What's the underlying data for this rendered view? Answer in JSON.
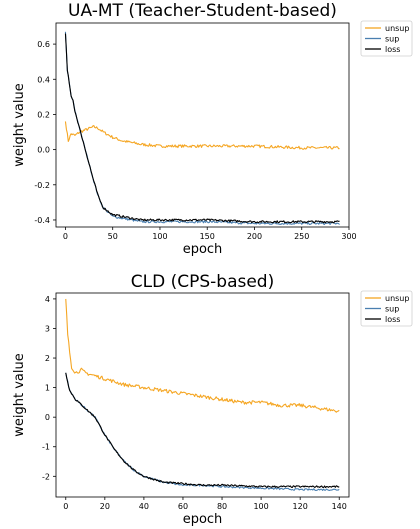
{
  "chart_data": [
    {
      "type": "line",
      "title": "UA-MT (Teacher-Student-based)",
      "xlabel": "epoch",
      "ylabel": "weight value",
      "xlim": [
        -10,
        300
      ],
      "ylim": [
        -0.44,
        0.72
      ],
      "xticks": [
        0,
        50,
        100,
        150,
        200,
        250,
        300
      ],
      "xtick_labels": [
        "0",
        "50",
        "100",
        "150",
        "200",
        "250",
        "300"
      ],
      "yticks": [
        0.6,
        0.4,
        0.2,
        0.0,
        -0.2,
        -0.4
      ],
      "ytick_labels": [
        "0.6",
        "0.4",
        "0.2",
        "0.0",
        "-0.2",
        "-0.4"
      ],
      "legend_position": "outside-right",
      "series": [
        {
          "name": "unsup",
          "color": "#f5a623",
          "x": [
            0,
            3,
            6,
            10,
            15,
            20,
            25,
            30,
            35,
            40,
            50,
            60,
            70,
            80,
            100,
            120,
            150,
            200,
            250,
            290
          ],
          "y": [
            0.16,
            0.05,
            0.09,
            0.08,
            0.1,
            0.11,
            0.12,
            0.13,
            0.12,
            0.1,
            0.07,
            0.05,
            0.04,
            0.03,
            0.02,
            0.02,
            0.02,
            0.02,
            0.01,
            0.01
          ]
        },
        {
          "name": "sup",
          "color": "#4a7fb0",
          "x": [
            0,
            2,
            4,
            6,
            8,
            10,
            15,
            20,
            25,
            30,
            35,
            40,
            50,
            60,
            70,
            80,
            100,
            120,
            150,
            200,
            250,
            290
          ],
          "y": [
            0.67,
            0.45,
            0.38,
            0.3,
            0.28,
            0.22,
            0.12,
            0.02,
            -0.08,
            -0.18,
            -0.27,
            -0.33,
            -0.38,
            -0.39,
            -0.4,
            -0.41,
            -0.41,
            -0.41,
            -0.41,
            -0.42,
            -0.42,
            -0.42
          ]
        },
        {
          "name": "loss",
          "color": "#000000",
          "x": [
            0,
            2,
            4,
            6,
            8,
            10,
            15,
            20,
            25,
            30,
            35,
            40,
            50,
            60,
            70,
            80,
            100,
            120,
            150,
            200,
            250,
            290
          ],
          "y": [
            0.66,
            0.45,
            0.38,
            0.3,
            0.28,
            0.22,
            0.12,
            0.02,
            -0.08,
            -0.18,
            -0.27,
            -0.33,
            -0.37,
            -0.38,
            -0.39,
            -0.4,
            -0.4,
            -0.4,
            -0.4,
            -0.41,
            -0.41,
            -0.41
          ]
        }
      ]
    },
    {
      "type": "line",
      "title": "CLD (CPS-based)",
      "xlabel": "epoch",
      "ylabel": "weight value",
      "xlim": [
        -5,
        145
      ],
      "ylim": [
        -2.7,
        4.2
      ],
      "xticks": [
        0,
        20,
        40,
        60,
        80,
        100,
        120,
        140
      ],
      "xtick_labels": [
        "0",
        "20",
        "40",
        "60",
        "80",
        "100",
        "120",
        "140"
      ],
      "yticks": [
        4,
        3,
        2,
        1,
        0,
        -1,
        -2
      ],
      "ytick_labels": [
        "4",
        "3",
        "2",
        "1",
        "0",
        "-1",
        "-2"
      ],
      "legend_position": "outside-right",
      "series": [
        {
          "name": "unsup",
          "color": "#f5a623",
          "x": [
            0,
            1,
            2,
            3,
            5,
            8,
            10,
            15,
            20,
            25,
            30,
            40,
            50,
            60,
            70,
            80,
            90,
            100,
            110,
            120,
            130,
            140
          ],
          "y": [
            4.0,
            2.8,
            2.2,
            1.7,
            1.5,
            1.6,
            1.5,
            1.4,
            1.3,
            1.2,
            1.1,
            1.0,
            0.9,
            0.8,
            0.7,
            0.6,
            0.5,
            0.5,
            0.4,
            0.4,
            0.3,
            0.2
          ]
        },
        {
          "name": "sup",
          "color": "#4a7fb0",
          "x": [
            0,
            2,
            5,
            10,
            15,
            20,
            25,
            30,
            35,
            40,
            50,
            60,
            70,
            80,
            100,
            120,
            140
          ],
          "y": [
            1.5,
            0.9,
            0.6,
            0.3,
            0.0,
            -0.6,
            -1.1,
            -1.5,
            -1.8,
            -2.0,
            -2.2,
            -2.3,
            -2.3,
            -2.35,
            -2.4,
            -2.45,
            -2.45
          ]
        },
        {
          "name": "loss",
          "color": "#000000",
          "x": [
            0,
            2,
            5,
            10,
            15,
            20,
            25,
            30,
            35,
            40,
            50,
            60,
            70,
            80,
            100,
            120,
            140
          ],
          "y": [
            1.5,
            0.9,
            0.6,
            0.3,
            0.0,
            -0.6,
            -1.1,
            -1.5,
            -1.8,
            -2.0,
            -2.2,
            -2.25,
            -2.3,
            -2.3,
            -2.35,
            -2.35,
            -2.35
          ]
        }
      ]
    }
  ]
}
